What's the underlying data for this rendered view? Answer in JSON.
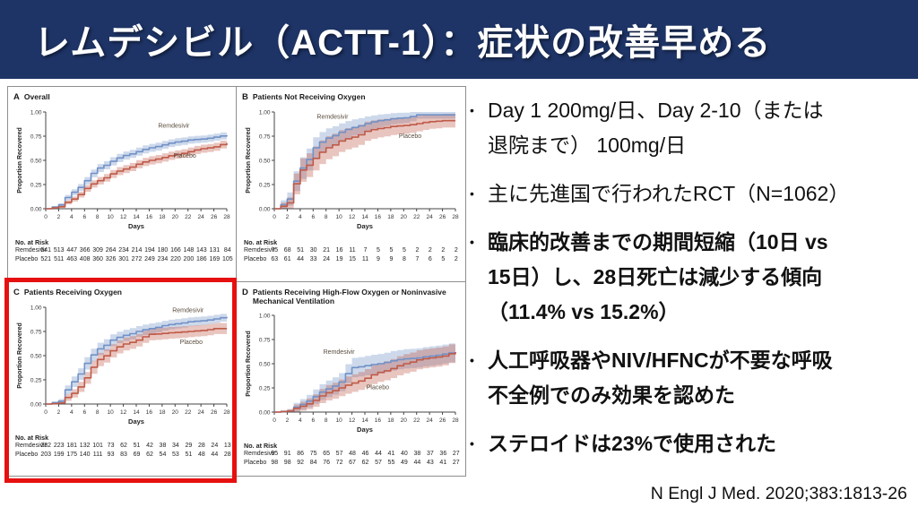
{
  "slide": {
    "title": "レムデシビル（ACTT-1）：症状の改善早める",
    "citation": "N Engl J Med. 2020;383:1813-26",
    "bullet_char": "•"
  },
  "bullets": [
    {
      "bold": false,
      "lines": [
        "Day 1 200mg/日、Day 2-10（または",
        "退院まで） 100mg/日"
      ]
    },
    {
      "bold": false,
      "lines": [
        "主に先進国で行われたRCT（N=1062）"
      ]
    },
    {
      "bold": true,
      "lines": [
        "臨床的改善までの期間短縮（10日 vs",
        "15日）し、28日死亡は減少する傾向",
        "（11.4% vs 15.2%）"
      ]
    },
    {
      "bold": true,
      "lines": [
        "人工呼吸器やNIV/HFNCが不要な呼吸",
        "不全例でのみ効果を認めた"
      ]
    },
    {
      "bold": true,
      "lines": [
        "ステロイドは23%で使用された"
      ]
    }
  ],
  "chart_style": {
    "remdesivir_color": "#7191c7",
    "placebo_color": "#bf5a48",
    "band_opacity": 0.35,
    "label_color": "#5a4c3e",
    "axis_color": "#444444",
    "tick_text_color": "#333333",
    "highlight_color": "#e61010"
  },
  "chart_data": [
    {
      "type": "line",
      "panel_letter": "A",
      "title": "Overall",
      "xlabel": "Days",
      "ylabel": "Proportion Recovered",
      "xlim": [
        0,
        28
      ],
      "ylim": [
        0,
        1
      ],
      "xticks": [
        0,
        2,
        4,
        6,
        8,
        10,
        12,
        14,
        16,
        18,
        20,
        22,
        24,
        26,
        28
      ],
      "yticks": [
        "0.00",
        "0.25",
        "0.50",
        "0.75",
        "1.00"
      ],
      "x": [
        0,
        2,
        4,
        6,
        8,
        10,
        12,
        14,
        16,
        18,
        20,
        22,
        24,
        26,
        28
      ],
      "highlighted": false,
      "series": [
        {
          "name": "Remdesivir",
          "n": 541,
          "label_at": [
            19.8,
            0.84
          ],
          "values": [
            0,
            0.04,
            0.17,
            0.29,
            0.42,
            0.49,
            0.55,
            0.59,
            0.63,
            0.66,
            0.69,
            0.71,
            0.72,
            0.74,
            0.76
          ]
        },
        {
          "name": "Placebo",
          "n": 521,
          "label_at": [
            21.5,
            0.53
          ],
          "values": [
            0,
            0.02,
            0.1,
            0.21,
            0.29,
            0.36,
            0.41,
            0.46,
            0.5,
            0.53,
            0.56,
            0.59,
            0.62,
            0.64,
            0.68
          ]
        }
      ],
      "at_risk_label": "No. at Risk",
      "at_risk": [
        {
          "name": "Remdesivir",
          "counts": [
            541,
            513,
            447,
            366,
            309,
            264,
            234,
            214,
            194,
            180,
            166,
            148,
            143,
            131,
            84
          ]
        },
        {
          "name": "Placebo",
          "counts": [
            521,
            511,
            463,
            408,
            360,
            326,
            301,
            272,
            249,
            234,
            220,
            200,
            186,
            169,
            105
          ]
        }
      ]
    },
    {
      "type": "line",
      "panel_letter": "B",
      "title": "Patients Not Receiving Oxygen",
      "xlabel": "Days",
      "ylabel": "Proportion Recovered",
      "xlim": [
        0,
        28
      ],
      "ylim": [
        0,
        1
      ],
      "xticks": [
        0,
        2,
        4,
        6,
        8,
        10,
        12,
        14,
        16,
        18,
        20,
        22,
        24,
        26,
        28
      ],
      "yticks": [
        "0.00",
        "0.25",
        "0.50",
        "0.75",
        "1.00"
      ],
      "x": [
        0,
        2,
        4,
        6,
        8,
        10,
        12,
        14,
        16,
        18,
        20,
        22,
        24,
        26,
        28
      ],
      "highlighted": false,
      "series": [
        {
          "name": "Remdesivir",
          "n": 75,
          "label_at": [
            9.0,
            0.93
          ],
          "values": [
            0,
            0.1,
            0.42,
            0.63,
            0.73,
            0.79,
            0.84,
            0.88,
            0.91,
            0.93,
            0.94,
            0.97,
            0.97,
            0.97,
            0.97
          ]
        },
        {
          "name": "Placebo",
          "n": 63,
          "label_at": [
            21.0,
            0.73
          ],
          "values": [
            0,
            0.06,
            0.4,
            0.52,
            0.63,
            0.7,
            0.74,
            0.8,
            0.83,
            0.85,
            0.86,
            0.88,
            0.9,
            0.91,
            0.91
          ]
        }
      ],
      "at_risk_label": "No. at Risk",
      "at_risk": [
        {
          "name": "Remdesivir",
          "counts": [
            75,
            68,
            51,
            30,
            21,
            16,
            11,
            7,
            5,
            5,
            5,
            2,
            2,
            2,
            2
          ]
        },
        {
          "name": "Placebo",
          "counts": [
            63,
            61,
            44,
            33,
            24,
            19,
            15,
            11,
            9,
            9,
            8,
            7,
            6,
            5,
            2
          ]
        }
      ]
    },
    {
      "type": "line",
      "panel_letter": "C",
      "title": "Patients Receiving Oxygen",
      "xlabel": "Days",
      "ylabel": "Proportion Recovered",
      "xlim": [
        0,
        28
      ],
      "ylim": [
        0,
        1
      ],
      "xticks": [
        0,
        2,
        4,
        6,
        8,
        10,
        12,
        14,
        16,
        18,
        20,
        22,
        24,
        26,
        28
      ],
      "yticks": [
        "0.00",
        "0.25",
        "0.50",
        "0.75",
        "1.00"
      ],
      "x": [
        0,
        2,
        4,
        6,
        8,
        10,
        12,
        14,
        16,
        18,
        20,
        22,
        24,
        26,
        28
      ],
      "highlighted": true,
      "series": [
        {
          "name": "Remdesivir",
          "n": 232,
          "label_at": [
            22.0,
            0.95
          ],
          "values": [
            0,
            0.03,
            0.23,
            0.42,
            0.57,
            0.66,
            0.71,
            0.75,
            0.78,
            0.81,
            0.83,
            0.85,
            0.86,
            0.88,
            0.9
          ]
        },
        {
          "name": "Placebo",
          "n": 203,
          "label_at": [
            22.5,
            0.62
          ],
          "values": [
            0,
            0.01,
            0.11,
            0.27,
            0.46,
            0.55,
            0.62,
            0.66,
            0.72,
            0.73,
            0.74,
            0.75,
            0.76,
            0.78,
            0.78
          ]
        }
      ],
      "at_risk_label": "No. at Risk",
      "at_risk": [
        {
          "name": "Remdesivir",
          "counts": [
            232,
            223,
            181,
            132,
            101,
            73,
            62,
            51,
            42,
            38,
            34,
            29,
            28,
            24,
            13
          ]
        },
        {
          "name": "Placebo",
          "counts": [
            203,
            199,
            175,
            140,
            111,
            93,
            83,
            69,
            62,
            54,
            53,
            51,
            48,
            44,
            28
          ]
        }
      ]
    },
    {
      "type": "line",
      "panel_letter": "D",
      "title": "Patients Receiving High-Flow Oxygen or Noninvasive Mechanical Ventilation",
      "xlabel": "Days",
      "ylabel": "Proportion Recovered",
      "xlim": [
        0,
        28
      ],
      "ylim": [
        0,
        1
      ],
      "xticks": [
        0,
        2,
        4,
        6,
        8,
        10,
        12,
        14,
        16,
        18,
        20,
        22,
        24,
        26,
        28
      ],
      "yticks": [
        "0.00",
        "0.25",
        "0.50",
        "0.75",
        "1.00"
      ],
      "x": [
        0,
        2,
        4,
        6,
        8,
        10,
        12,
        14,
        16,
        18,
        20,
        22,
        24,
        26,
        28
      ],
      "highlighted": false,
      "series": [
        {
          "name": "Remdesivir",
          "n": 95,
          "label_at": [
            10.0,
            0.6
          ],
          "values": [
            0,
            0.01,
            0.08,
            0.16,
            0.24,
            0.31,
            0.46,
            0.48,
            0.5,
            0.53,
            0.55,
            0.56,
            0.58,
            0.6,
            0.62
          ]
        },
        {
          "name": "Placebo",
          "n": 98,
          "label_at": [
            16.0,
            0.235
          ],
          "values": [
            0,
            0.01,
            0.06,
            0.12,
            0.2,
            0.25,
            0.3,
            0.35,
            0.41,
            0.45,
            0.5,
            0.54,
            0.56,
            0.58,
            0.62
          ]
        }
      ],
      "at_risk_label": "No. at Risk",
      "at_risk": [
        {
          "name": "Remdesivir",
          "counts": [
            95,
            91,
            86,
            75,
            65,
            57,
            48,
            46,
            44,
            41,
            40,
            38,
            37,
            36,
            27
          ]
        },
        {
          "name": "Placebo",
          "counts": [
            98,
            98,
            92,
            84,
            76,
            72,
            67,
            62,
            57,
            55,
            49,
            44,
            43,
            41,
            27
          ]
        }
      ]
    }
  ]
}
